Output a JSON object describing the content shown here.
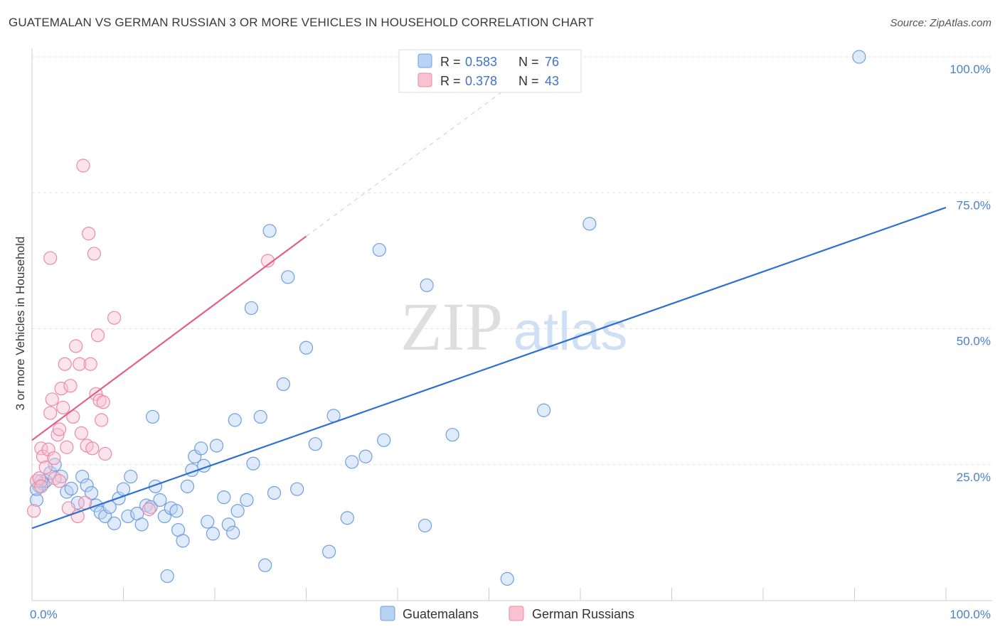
{
  "title": "GUATEMALAN VS GERMAN RUSSIAN 3 OR MORE VEHICLES IN HOUSEHOLD CORRELATION CHART",
  "source": "Source: ZipAtlas.com",
  "colors": {
    "blue": "#6f9fe0",
    "blue_fill": "#b9d1f3",
    "blue_line": "#2f6fd0",
    "pink": "#ee88a8",
    "pink_fill": "#f7c3d3",
    "pink_line": "#e0608a"
  },
  "watermark": {
    "zip": "ZIP",
    "atlas": "atlas"
  },
  "legend": {
    "r_label": "R =",
    "n_label": "N =",
    "rows": [
      {
        "series": "Guatemalans",
        "r": "0.583",
        "n": "76"
      },
      {
        "series": "German Russians",
        "r": "0.378",
        "n": "43"
      }
    ]
  },
  "chart_data": {
    "type": "scatter",
    "title": "GUATEMALAN VS GERMAN RUSSIAN 3 OR MORE VEHICLES IN HOUSEHOLD CORRELATION CHART",
    "xlabel": "",
    "ylabel": "3 or more Vehicles in Household",
    "xlim": [
      0,
      100
    ],
    "ylim": [
      0,
      100
    ],
    "x_tick_labels": [
      "0.0%",
      "100.0%"
    ],
    "y_tick_labels": [
      "25.0%",
      "50.0%",
      "75.0%",
      "100.0%"
    ],
    "y_ticks": [
      25,
      50,
      75,
      100
    ],
    "grid": true,
    "legend_position": "top-center",
    "series": [
      {
        "name": "Guatemalans",
        "color": "#6f9fe0",
        "trend": {
          "x": [
            0,
            100
          ],
          "y": [
            13.3,
            72.3
          ]
        },
        "points": [
          [
            0.5,
            18.5
          ],
          [
            0.8,
            21.0
          ],
          [
            1.2,
            21.5
          ],
          [
            1.5,
            22.0
          ],
          [
            2.0,
            23.5
          ],
          [
            2.5,
            25.0
          ],
          [
            3.2,
            22.8
          ],
          [
            3.8,
            20.0
          ],
          [
            4.3,
            20.6
          ],
          [
            5.0,
            18.0
          ],
          [
            5.5,
            22.8
          ],
          [
            6.0,
            21.2
          ],
          [
            6.5,
            19.8
          ],
          [
            7.0,
            17.5
          ],
          [
            7.5,
            16.2
          ],
          [
            8.0,
            15.5
          ],
          [
            8.5,
            17.2
          ],
          [
            9.0,
            14.2
          ],
          [
            9.5,
            18.8
          ],
          [
            10.0,
            20.5
          ],
          [
            10.5,
            15.5
          ],
          [
            10.8,
            22.8
          ],
          [
            11.5,
            16.0
          ],
          [
            12.0,
            14.0
          ],
          [
            12.5,
            17.5
          ],
          [
            13.0,
            17.2
          ],
          [
            13.2,
            33.8
          ],
          [
            13.5,
            21.0
          ],
          [
            14.0,
            18.5
          ],
          [
            14.5,
            15.5
          ],
          [
            14.8,
            4.5
          ],
          [
            15.2,
            17.0
          ],
          [
            15.8,
            16.5
          ],
          [
            16.0,
            13.0
          ],
          [
            16.5,
            11.0
          ],
          [
            17.0,
            21.0
          ],
          [
            17.5,
            24.0
          ],
          [
            17.8,
            26.5
          ],
          [
            18.5,
            28.0
          ],
          [
            18.8,
            24.8
          ],
          [
            19.2,
            14.5
          ],
          [
            19.8,
            12.3
          ],
          [
            20.2,
            28.5
          ],
          [
            21.0,
            19.0
          ],
          [
            21.5,
            14.0
          ],
          [
            22.0,
            12.5
          ],
          [
            22.2,
            33.2
          ],
          [
            22.5,
            16.5
          ],
          [
            23.5,
            18.5
          ],
          [
            24.0,
            53.8
          ],
          [
            24.2,
            25.2
          ],
          [
            25.0,
            33.8
          ],
          [
            25.5,
            6.5
          ],
          [
            26.0,
            68.0
          ],
          [
            26.5,
            19.8
          ],
          [
            27.5,
            39.8
          ],
          [
            28.0,
            59.5
          ],
          [
            29.0,
            20.5
          ],
          [
            30.0,
            46.5
          ],
          [
            31.0,
            28.8
          ],
          [
            32.5,
            9.0
          ],
          [
            33.0,
            34.0
          ],
          [
            34.5,
            15.2
          ],
          [
            35.0,
            25.5
          ],
          [
            36.5,
            26.5
          ],
          [
            38.0,
            64.5
          ],
          [
            38.5,
            29.5
          ],
          [
            43.0,
            13.8
          ],
          [
            43.2,
            58.0
          ],
          [
            46.0,
            30.5
          ],
          [
            52.0,
            4.0
          ],
          [
            56.0,
            35.0
          ],
          [
            61.0,
            69.3
          ],
          [
            90.5,
            100.0
          ],
          [
            0.5,
            20.5
          ],
          [
            1.0,
            22.0
          ]
        ]
      },
      {
        "name": "German Russians",
        "color": "#ee88a8",
        "trend": {
          "x": [
            0,
            30
          ],
          "y": [
            29.5,
            67.0
          ]
        },
        "trend_dashed": {
          "x": [
            30,
            55
          ],
          "y": [
            67.0,
            98.0
          ]
        },
        "points": [
          [
            0.2,
            16.5
          ],
          [
            0.5,
            22.0
          ],
          [
            0.8,
            22.5
          ],
          [
            1.0,
            28.0
          ],
          [
            1.2,
            26.5
          ],
          [
            1.5,
            24.5
          ],
          [
            1.8,
            27.8
          ],
          [
            2.0,
            34.5
          ],
          [
            2.2,
            37.0
          ],
          [
            2.4,
            26.2
          ],
          [
            2.5,
            22.5
          ],
          [
            2.8,
            30.5
          ],
          [
            3.0,
            31.5
          ],
          [
            3.2,
            39.0
          ],
          [
            3.4,
            35.5
          ],
          [
            3.6,
            43.5
          ],
          [
            3.8,
            28.2
          ],
          [
            4.0,
            17.0
          ],
          [
            4.2,
            39.5
          ],
          [
            4.5,
            33.8
          ],
          [
            4.8,
            46.8
          ],
          [
            5.0,
            15.5
          ],
          [
            5.2,
            43.5
          ],
          [
            5.4,
            30.8
          ],
          [
            5.6,
            80.0
          ],
          [
            5.8,
            18.0
          ],
          [
            6.0,
            28.5
          ],
          [
            6.2,
            67.5
          ],
          [
            6.4,
            43.5
          ],
          [
            6.6,
            28.0
          ],
          [
            6.8,
            63.8
          ],
          [
            7.0,
            38.0
          ],
          [
            7.2,
            48.8
          ],
          [
            7.4,
            36.8
          ],
          [
            7.6,
            33.2
          ],
          [
            2.0,
            63.0
          ],
          [
            7.8,
            36.5
          ],
          [
            8.0,
            27.0
          ],
          [
            9.0,
            52.0
          ],
          [
            12.8,
            16.8
          ],
          [
            25.8,
            62.5
          ],
          [
            3.0,
            22.0
          ],
          [
            1.0,
            21.0
          ]
        ]
      }
    ]
  }
}
